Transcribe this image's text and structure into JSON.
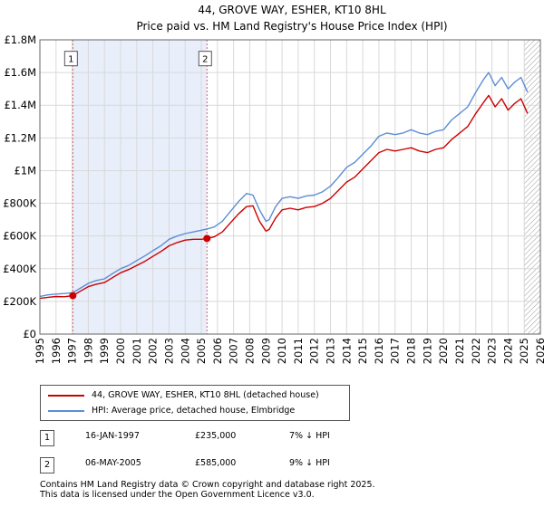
{
  "chart_data": {
    "type": "line",
    "title": "44, GROVE WAY, ESHER, KT10 8HL",
    "subtitle": "Price paid vs. HM Land Registry's House Price Index (HPI)",
    "xlim": [
      1995,
      2026
    ],
    "ylim": [
      0,
      1800000
    ],
    "x_ticks": [
      "1995",
      "1996",
      "1997",
      "1998",
      "1999",
      "2000",
      "2001",
      "2002",
      "2003",
      "2004",
      "2005",
      "2006",
      "2007",
      "2008",
      "2009",
      "2010",
      "2011",
      "2012",
      "2013",
      "2014",
      "2015",
      "2016",
      "2017",
      "2018",
      "2019",
      "2020",
      "2021",
      "2022",
      "2023",
      "2024",
      "2025",
      "2026"
    ],
    "y_ticks": [
      {
        "value": 0,
        "label": "£0"
      },
      {
        "value": 200000,
        "label": "£200K"
      },
      {
        "value": 400000,
        "label": "£400K"
      },
      {
        "value": 600000,
        "label": "£600K"
      },
      {
        "value": 800000,
        "label": "£800K"
      },
      {
        "value": 1000000,
        "label": "£1M"
      },
      {
        "value": 1200000,
        "label": "£1.2M"
      },
      {
        "value": 1400000,
        "label": "£1.4M"
      },
      {
        "value": 1600000,
        "label": "£1.6M"
      },
      {
        "value": 1800000,
        "label": "£1.8M"
      }
    ],
    "shaded_range": [
      1997.04,
      2005.35
    ],
    "hatched_from": 2025.0,
    "series": [
      {
        "name": "44, GROVE WAY, ESHER, KT10 8HL (detached house)",
        "color": "#cc0000",
        "x": [
          1995.0,
          1995.5,
          1996.0,
          1996.5,
          1997.04,
          1997.5,
          1998.0,
          1998.5,
          1999.0,
          1999.5,
          2000.0,
          2000.5,
          2001.0,
          2001.5,
          2002.0,
          2002.5,
          2003.0,
          2003.5,
          2004.0,
          2004.5,
          2005.0,
          2005.35,
          2005.8,
          2006.3,
          2006.8,
          2007.3,
          2007.8,
          2008.2,
          2008.6,
          2009.0,
          2009.2,
          2009.6,
          2010.0,
          2010.5,
          2011.0,
          2011.5,
          2012.0,
          2012.5,
          2013.0,
          2013.5,
          2014.0,
          2014.5,
          2015.0,
          2015.5,
          2016.0,
          2016.5,
          2017.0,
          2017.5,
          2018.0,
          2018.5,
          2019.0,
          2019.5,
          2020.0,
          2020.5,
          2021.0,
          2021.5,
          2022.0,
          2022.5,
          2022.8,
          2023.2,
          2023.6,
          2024.0,
          2024.4,
          2024.8,
          2025.2
        ],
        "y": [
          218000,
          225000,
          230000,
          228000,
          235000,
          262000,
          290000,
          305000,
          315000,
          345000,
          375000,
          395000,
          420000,
          445000,
          475000,
          505000,
          540000,
          560000,
          575000,
          580000,
          580000,
          585000,
          595000,
          625000,
          680000,
          735000,
          780000,
          785000,
          690000,
          630000,
          640000,
          710000,
          760000,
          770000,
          760000,
          775000,
          780000,
          800000,
          830000,
          880000,
          930000,
          960000,
          1010000,
          1060000,
          1110000,
          1130000,
          1120000,
          1130000,
          1140000,
          1120000,
          1110000,
          1130000,
          1140000,
          1190000,
          1230000,
          1270000,
          1350000,
          1420000,
          1460000,
          1390000,
          1440000,
          1370000,
          1410000,
          1440000,
          1350000
        ]
      },
      {
        "name": "HPI: Average price, detached house, Elmbridge",
        "color": "#5b8ed6",
        "x": [
          1995.0,
          1995.5,
          1996.0,
          1996.5,
          1997.04,
          1997.5,
          1998.0,
          1998.5,
          1999.0,
          1999.5,
          2000.0,
          2000.5,
          2001.0,
          2001.5,
          2002.0,
          2002.5,
          2003.0,
          2003.5,
          2004.0,
          2004.5,
          2005.0,
          2005.35,
          2005.8,
          2006.3,
          2006.8,
          2007.3,
          2007.8,
          2008.2,
          2008.6,
          2009.0,
          2009.2,
          2009.6,
          2010.0,
          2010.5,
          2011.0,
          2011.5,
          2012.0,
          2012.5,
          2013.0,
          2013.5,
          2014.0,
          2014.5,
          2015.0,
          2015.5,
          2016.0,
          2016.5,
          2017.0,
          2017.5,
          2018.0,
          2018.5,
          2019.0,
          2019.5,
          2020.0,
          2020.5,
          2021.0,
          2021.5,
          2022.0,
          2022.5,
          2022.8,
          2023.2,
          2023.6,
          2024.0,
          2024.4,
          2024.8,
          2025.2
        ],
        "y": [
          230000,
          240000,
          245000,
          248000,
          253000,
          280000,
          310000,
          328000,
          338000,
          370000,
          400000,
          420000,
          450000,
          478000,
          510000,
          540000,
          580000,
          600000,
          615000,
          625000,
          635000,
          643000,
          655000,
          690000,
          750000,
          810000,
          860000,
          850000,
          760000,
          690000,
          700000,
          780000,
          830000,
          840000,
          830000,
          845000,
          850000,
          870000,
          905000,
          960000,
          1020000,
          1050000,
          1100000,
          1150000,
          1210000,
          1230000,
          1220000,
          1230000,
          1250000,
          1230000,
          1220000,
          1240000,
          1250000,
          1310000,
          1350000,
          1390000,
          1480000,
          1560000,
          1600000,
          1520000,
          1570000,
          1500000,
          1540000,
          1570000,
          1480000
        ]
      }
    ],
    "transactions": [
      {
        "marker": "1",
        "x": 1997.04,
        "y": 235000,
        "date": "16-JAN-1997",
        "price": "£235,000",
        "hpi_diff": "7% ↓ HPI"
      },
      {
        "marker": "2",
        "x": 2005.35,
        "y": 585000,
        "date": "06-MAY-2005",
        "price": "£585,000",
        "hpi_diff": "9% ↓ HPI"
      }
    ],
    "marker_label_y": 1680000
  },
  "footer": {
    "line1": "Contains HM Land Registry data © Crown copyright and database right 2025.",
    "line2": "This data is licensed under the Open Government Licence v3.0."
  }
}
